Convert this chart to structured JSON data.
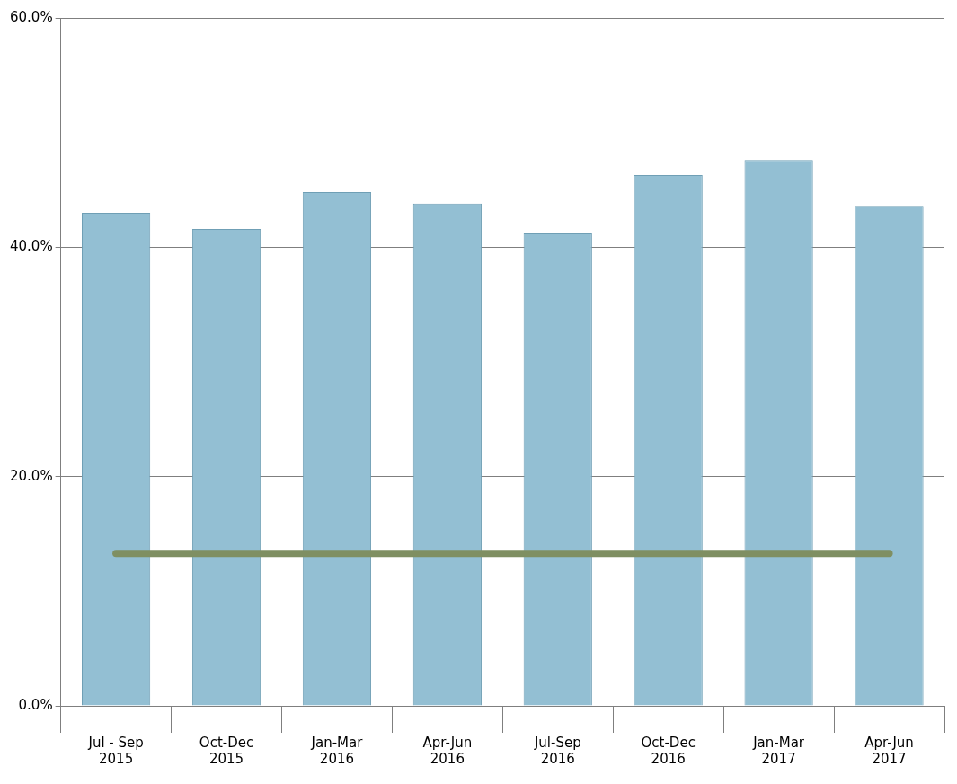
{
  "chart_data": {
    "type": "bar",
    "categories": [
      "Jul - Sep 2015",
      "Oct-Dec 2015",
      "Jan-Mar 2016",
      "Apr-Jun 2016",
      "Jul-Sep 2016",
      "Oct-Dec 2016",
      "Jan-Mar 2017",
      "Apr-Jun 2017"
    ],
    "series": [
      {
        "color": "#93bfd3",
        "values": [
          43.0,
          41.6,
          44.8,
          43.8,
          41.2,
          46.3,
          47.6,
          43.6
        ]
      },
      {
        "type": "line",
        "color": "#7f8f62",
        "values": [
          13.3,
          13.3,
          13.3,
          13.3,
          13.3,
          13.3,
          13.3,
          13.3
        ]
      }
    ],
    "ylim": [
      0,
      60
    ],
    "yticks": [
      {
        "value": 0,
        "label": "0.0%"
      },
      {
        "value": 20,
        "label": "20.0%"
      },
      {
        "value": 40,
        "label": "40.0%"
      },
      {
        "value": 60,
        "label": "60.0%"
      }
    ],
    "grid": "y",
    "legend": false,
    "marker": "none"
  }
}
